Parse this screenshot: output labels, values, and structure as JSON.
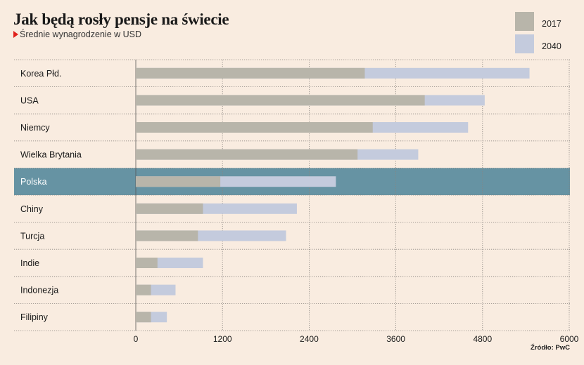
{
  "title": "Jak będą rosły pensje na świecie",
  "subtitle": "Średnie wynagrodzenie w USD",
  "source": "Źródło: PwC",
  "legend": {
    "s2017": "2017",
    "s2040": "2040"
  },
  "colors": {
    "background": "#f9ece0",
    "s2017": "#b8b5aa",
    "s2040": "#c4cbdd",
    "highlight_row": "#6693a3",
    "highlight_text": "#ffffff"
  },
  "chart_data": {
    "type": "bar",
    "orientation": "horizontal",
    "stacking": "overlay",
    "categories": [
      "Korea Płd.",
      "USA",
      "Niemcy",
      "Wielka Brytania",
      "Polska",
      "Chiny",
      "Turcja",
      "Indie",
      "Indonezja",
      "Filipiny"
    ],
    "series": [
      {
        "name": "2017",
        "values": [
          3170,
          4000,
          3280,
          3070,
          1170,
          930,
          860,
          300,
          210,
          210
        ]
      },
      {
        "name": "2040",
        "values": [
          5450,
          4830,
          4600,
          3910,
          2770,
          2230,
          2080,
          930,
          550,
          430
        ]
      }
    ],
    "xlim": [
      0,
      6000
    ],
    "xticks": [
      0,
      1200,
      2400,
      3600,
      4800,
      6000
    ],
    "highlight": "Polska",
    "grid": true,
    "legend_position": "top-right"
  }
}
